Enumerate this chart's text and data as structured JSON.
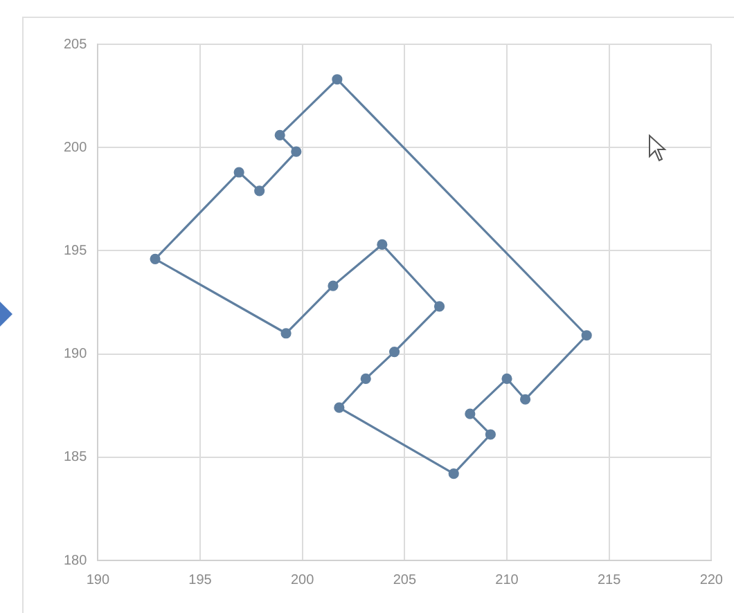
{
  "chart_data": {
    "type": "line",
    "marker": "none",
    "line_style": "solid",
    "grid": true,
    "legend": false,
    "xlim": [
      190,
      220
    ],
    "xticks": [
      190,
      195,
      200,
      205,
      210,
      215,
      220
    ],
    "ylim": [
      180,
      205
    ],
    "yticks": [
      180,
      185,
      190,
      195,
      200,
      205
    ],
    "series": [
      {
        "color": "#5f7fa0",
        "x": [
          201.7,
          213.9
        ],
        "values": [
          203.3,
          190.9
        ]
      },
      {
        "color": "#5f7fa0",
        "x": [
          208.2,
          210.0,
          210.9,
          213.9
        ],
        "values": [
          187.1,
          188.8,
          187.8,
          190.9
        ]
      },
      {
        "color": "#5f7fa0",
        "x": [
          208.2,
          209.2
        ],
        "values": [
          187.1,
          186.1
        ]
      },
      {
        "color": "#5f7fa0",
        "x": [
          201.8,
          207.4,
          209.2
        ],
        "values": [
          187.4,
          184.2,
          186.1
        ]
      },
      {
        "color": "#5f7fa0",
        "x": [
          201.8,
          203.1,
          204.5,
          206.7
        ],
        "values": [
          187.4,
          188.8,
          190.1,
          192.3
        ]
      },
      {
        "color": "#5f7fa0",
        "x": [
          192.8,
          199.2,
          201.5,
          203.9,
          206.7
        ],
        "values": [
          194.6,
          191.0,
          193.3,
          195.3,
          192.3
        ]
      },
      {
        "color": "#5f7fa0",
        "x": [
          192.8,
          196.9,
          197.9,
          199.7
        ],
        "values": [
          194.6,
          198.8,
          197.9,
          199.8
        ]
      },
      {
        "color": "#5f7fa0",
        "x": [
          198.9,
          199.7
        ],
        "values": [
          200.6,
          199.8
        ]
      },
      {
        "color": "#5f7fa0",
        "x": [
          198.9,
          201.7
        ],
        "values": [
          200.6,
          203.3
        ]
      },
      {
        "type": "scatter",
        "marker": "circle",
        "line_style": "none",
        "color": "#5f7fa0",
        "x": [
          201.7,
          213.9,
          210.9,
          210.0,
          208.2,
          209.2,
          207.4,
          201.8,
          203.1,
          204.5,
          206.7,
          203.9,
          201.5,
          199.2,
          192.8,
          196.9,
          197.9,
          199.7,
          198.9
        ],
        "values": [
          203.3,
          190.9,
          187.8,
          188.8,
          187.1,
          186.1,
          184.2,
          187.4,
          188.8,
          190.1,
          192.3,
          195.3,
          193.3,
          191.0,
          194.6,
          198.8,
          197.9,
          199.8,
          200.6
        ]
      }
    ]
  }
}
